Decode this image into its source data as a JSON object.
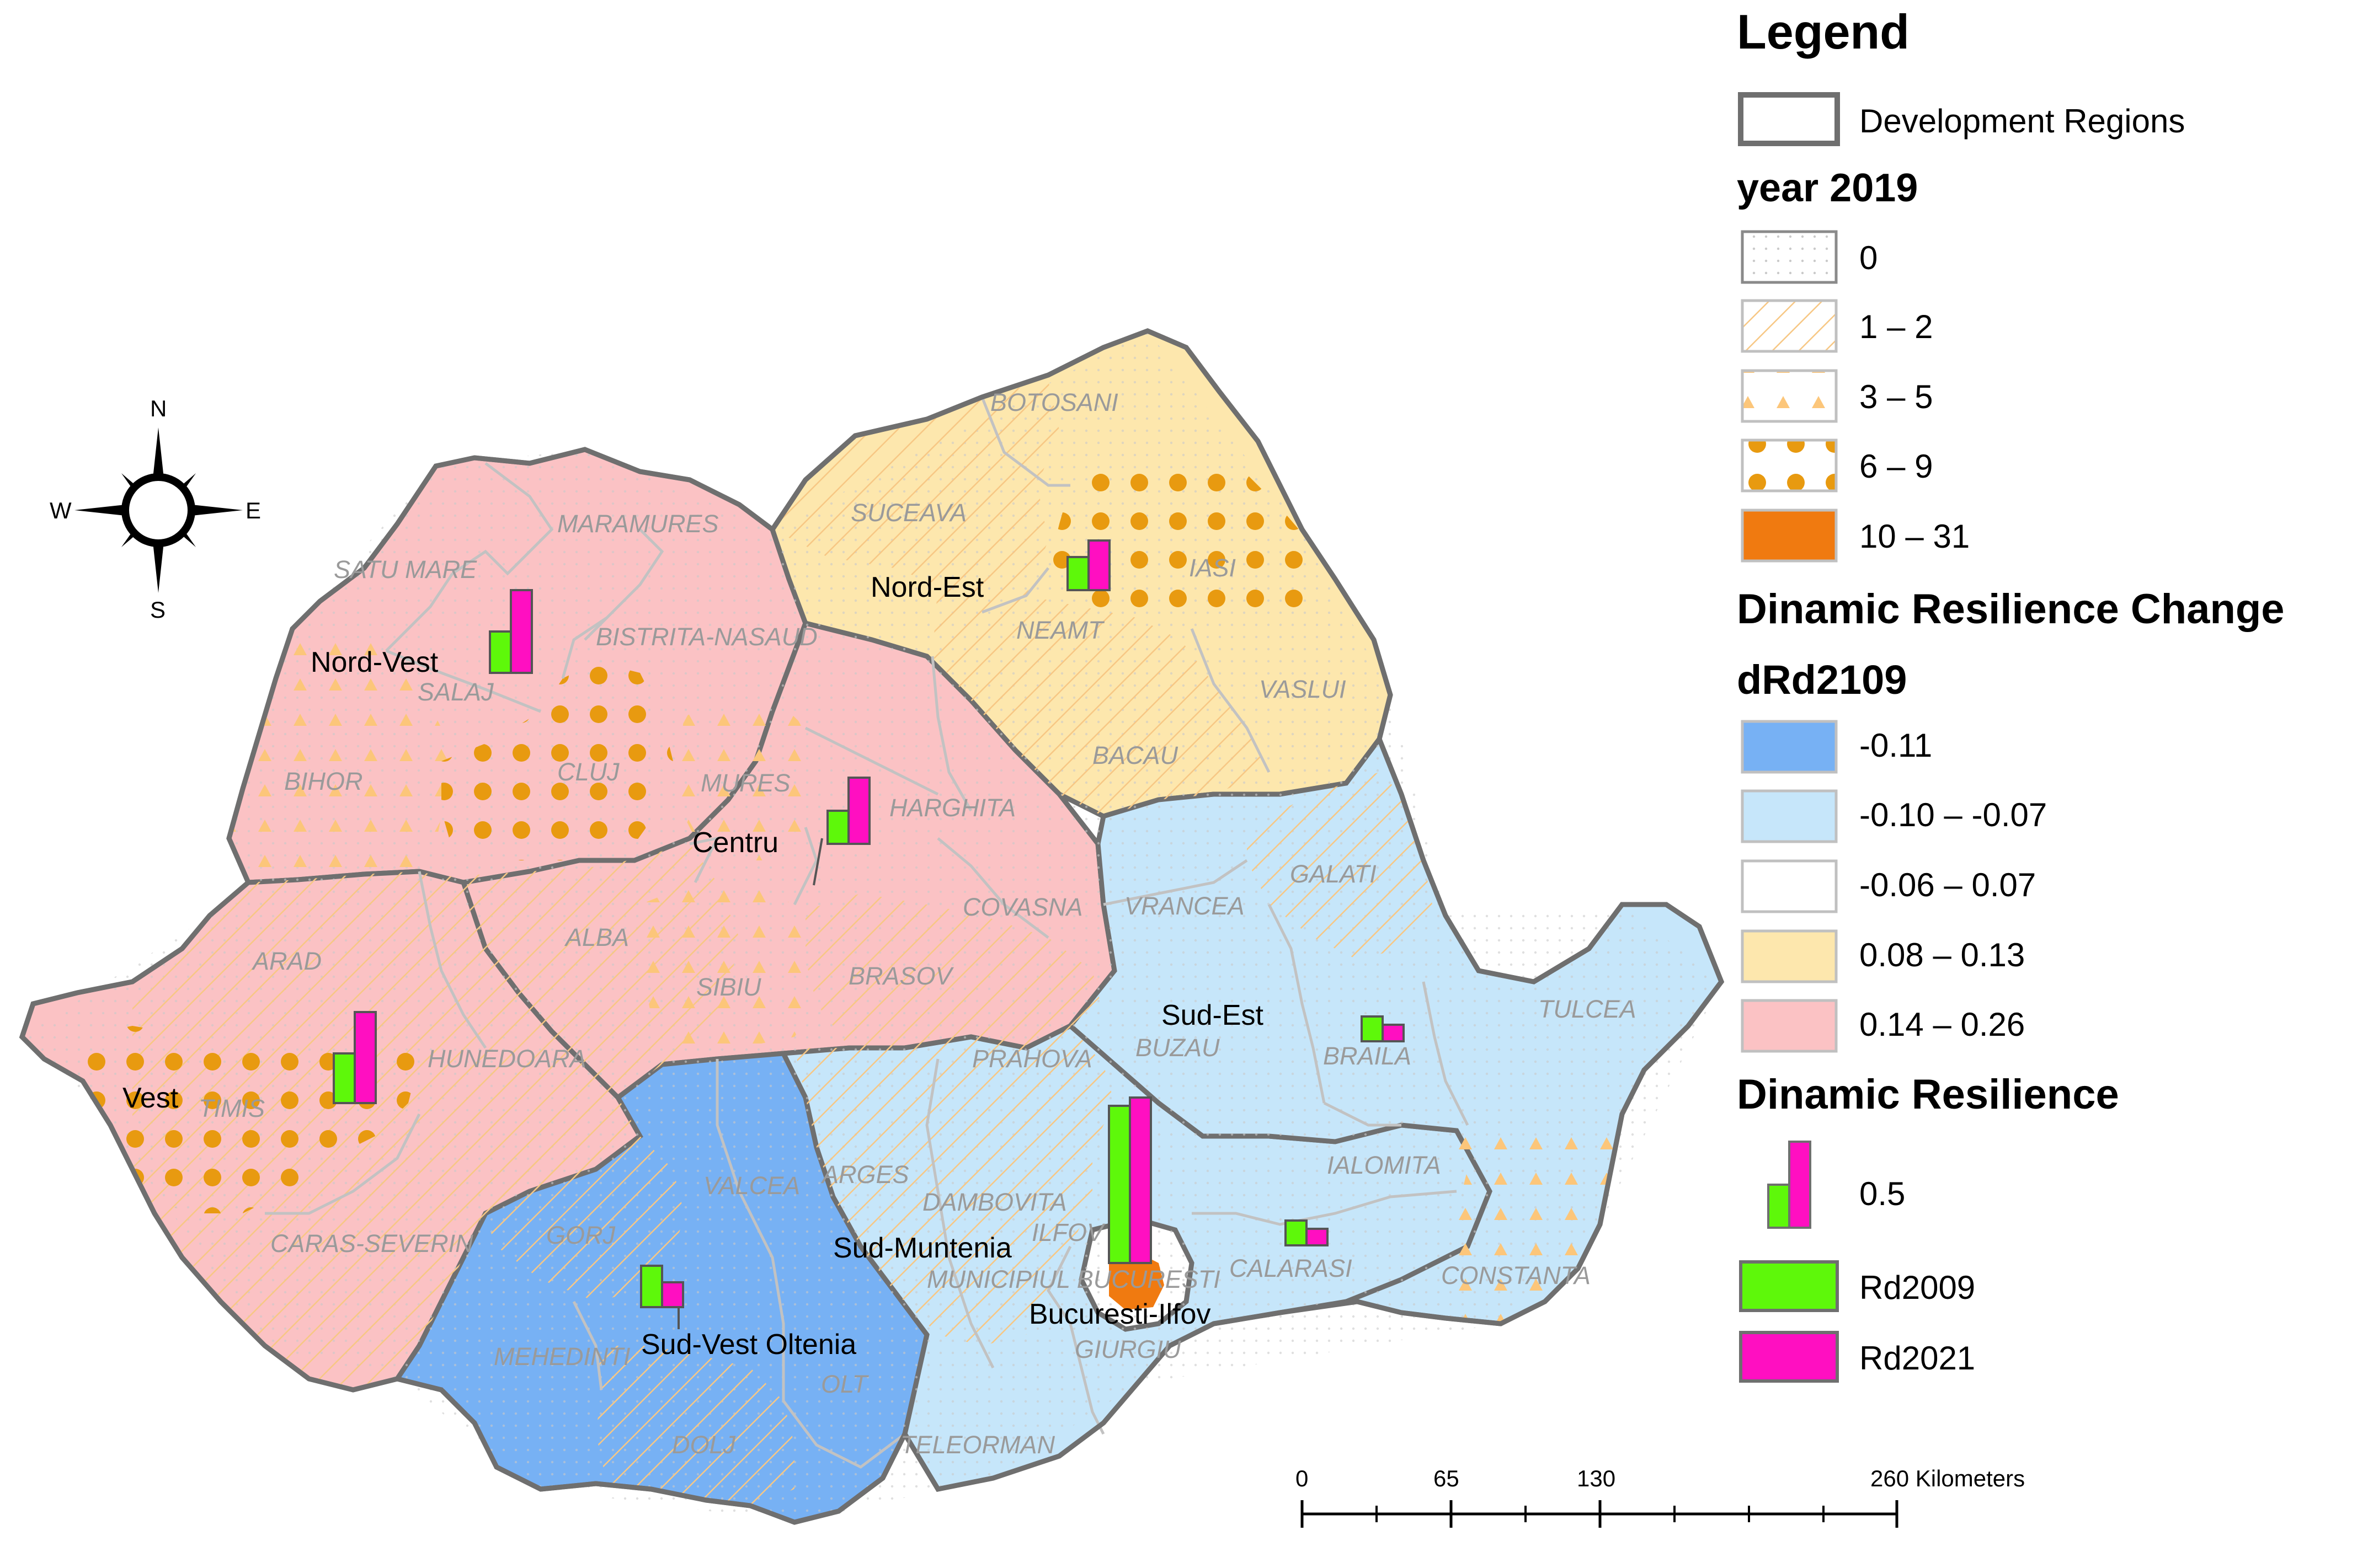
{
  "compass": {
    "n": "N",
    "s": "S",
    "e": "E",
    "w": "W"
  },
  "legend": {
    "title": "Legend",
    "boundary_label": "Development Regions",
    "year_title": "year 2019",
    "year_classes": [
      "0",
      "1 – 2",
      "3  –  5",
      "6  –  9",
      "10  –  31"
    ],
    "change_title": "Dinamic Resilience Change",
    "change_subtitle": "dRd2109",
    "change_classes": [
      "-0.11",
      "-0.10  –  -0.07",
      "-0.06  –  0.07",
      "0.08  –  0.13",
      "0.14  –  0.26"
    ],
    "change_colors": [
      "#77b1f4",
      "#c6e6fa",
      "#ffffff",
      "#fde7ad",
      "#fbc2c4"
    ],
    "resilience_title": "Dinamic Resilience",
    "resilience_scale": "0.5",
    "series": [
      {
        "label": "Rd2009",
        "color": "#5ef80a"
      },
      {
        "label": "Rd2021",
        "color": "#ff0fc1"
      }
    ]
  },
  "scale_bar": {
    "ticks": [
      "0",
      "65",
      "130",
      "260 Kilometers"
    ]
  },
  "regions": [
    {
      "name": "Nord-Vest",
      "rd2009": 0.25,
      "rd2021": 0.5
    },
    {
      "name": "Nord-Est",
      "rd2009": 0.2,
      "rd2021": 0.3
    },
    {
      "name": "Centru",
      "rd2009": 0.2,
      "rd2021": 0.4
    },
    {
      "name": "Vest",
      "rd2009": 0.3,
      "rd2021": 0.55
    },
    {
      "name": "Sud-Est",
      "rd2009": 0.15,
      "rd2021": 0.1
    },
    {
      "name": "Sud-Muntenia",
      "rd2009": 0.15,
      "rd2021": 0.1
    },
    {
      "name": "Bucuresti-Ilfov",
      "rd2009": 0.95,
      "rd2021": 1.0
    },
    {
      "name": "Sud-Vest Oltenia",
      "rd2009": 0.25,
      "rd2021": 0.15
    }
  ],
  "counties": [
    "MARAMURES",
    "SATU MARE",
    "BISTRITA-NASAUD",
    "SALAJ",
    "BIHOR",
    "CLUJ",
    "BOTOSANI",
    "SUCEAVA",
    "IASI",
    "NEAMT",
    "VASLUI",
    "BACAU",
    "MURES",
    "HARGHITA",
    "COVASNA",
    "ALBA",
    "SIBIU",
    "BRASOV",
    "ARAD",
    "HUNEDOARA",
    "TIMIS",
    "CARAS-SEVERIN",
    "VRANCEA",
    "GALATI",
    "TULCEA",
    "BUZAU",
    "BRAILA",
    "CONSTANTA",
    "PRAHOVA",
    "ARGES",
    "DAMBOVITA",
    "ILFOV",
    "MUNICIPIUL BUCURESTI",
    "IALOMITA",
    "CALARASI",
    "GIURGIU",
    "TELEORMAN",
    "VALCEA",
    "GORJ",
    "MEHEDINTI",
    "DOLJ",
    "OLT"
  ]
}
